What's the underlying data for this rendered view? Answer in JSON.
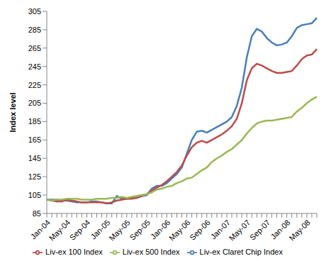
{
  "chart_data": {
    "type": "line",
    "y_label": "Index level",
    "categories": [
      "Jan-04",
      null,
      null,
      null,
      "May-04",
      null,
      null,
      null,
      "Sep-04",
      null,
      null,
      null,
      "Jan-05",
      null,
      null,
      null,
      "May-05",
      null,
      null,
      null,
      "Sep-05",
      null,
      null,
      null,
      "Jan-06",
      null,
      null,
      null,
      "May-06",
      null,
      null,
      null,
      "Sep-06",
      null,
      null,
      null,
      "Jan-07",
      null,
      null,
      null,
      "May-07",
      null,
      null,
      null,
      "Sep-07",
      null,
      null,
      null,
      "Jan-08",
      null,
      null,
      null,
      "May-08",
      null,
      null
    ],
    "series": [
      {
        "name": "Liv-ex Claret Chip Index",
        "color": "#4a7ebb",
        "values": [
          100,
          100,
          100,
          99,
          99,
          98,
          97,
          97,
          97,
          98,
          98,
          97,
          96,
          96,
          104,
          101,
          101,
          102,
          102,
          104,
          105,
          112,
          115,
          115,
          118,
          123,
          128,
          135,
          150,
          165,
          174,
          175,
          173,
          176,
          179,
          182,
          185,
          190,
          202,
          222,
          255,
          278,
          286,
          283,
          276,
          271,
          268,
          269,
          271,
          278,
          287,
          290,
          291,
          292,
          298
        ]
      },
      {
        "name": "Liv-ex 100 Index",
        "color": "#be4b48",
        "values": [
          100,
          99,
          98,
          98,
          100,
          99,
          98,
          97,
          97,
          97,
          97,
          97,
          96,
          97,
          99,
          100,
          101,
          101,
          102,
          104,
          106,
          110,
          113,
          116,
          120,
          125,
          130,
          137,
          148,
          157,
          162,
          164,
          162,
          165,
          168,
          171,
          175,
          180,
          188,
          205,
          230,
          243,
          248,
          246,
          243,
          240,
          238,
          238,
          239,
          240,
          246,
          253,
          257,
          258,
          264
        ]
      },
      {
        "name": "Liv-ex 500 Index",
        "color": "#98b954",
        "values": [
          100,
          99,
          100,
          100,
          101,
          101,
          101,
          100,
          100,
          100,
          101,
          101,
          101,
          102,
          102,
          103,
          102,
          103,
          104,
          105,
          106,
          108,
          111,
          112,
          114,
          115,
          118,
          120,
          123,
          124,
          128,
          132,
          135,
          141,
          145,
          148,
          152,
          155,
          160,
          165,
          172,
          178,
          183,
          185,
          186,
          186,
          187,
          188,
          189,
          190,
          196,
          200,
          205,
          209,
          212
        ]
      }
    ],
    "ylim": [
      85,
      305
    ],
    "yticks": [
      85,
      105,
      125,
      145,
      165,
      185,
      205,
      225,
      245,
      265,
      285,
      305
    ],
    "grid": false,
    "legend": "bottom"
  }
}
